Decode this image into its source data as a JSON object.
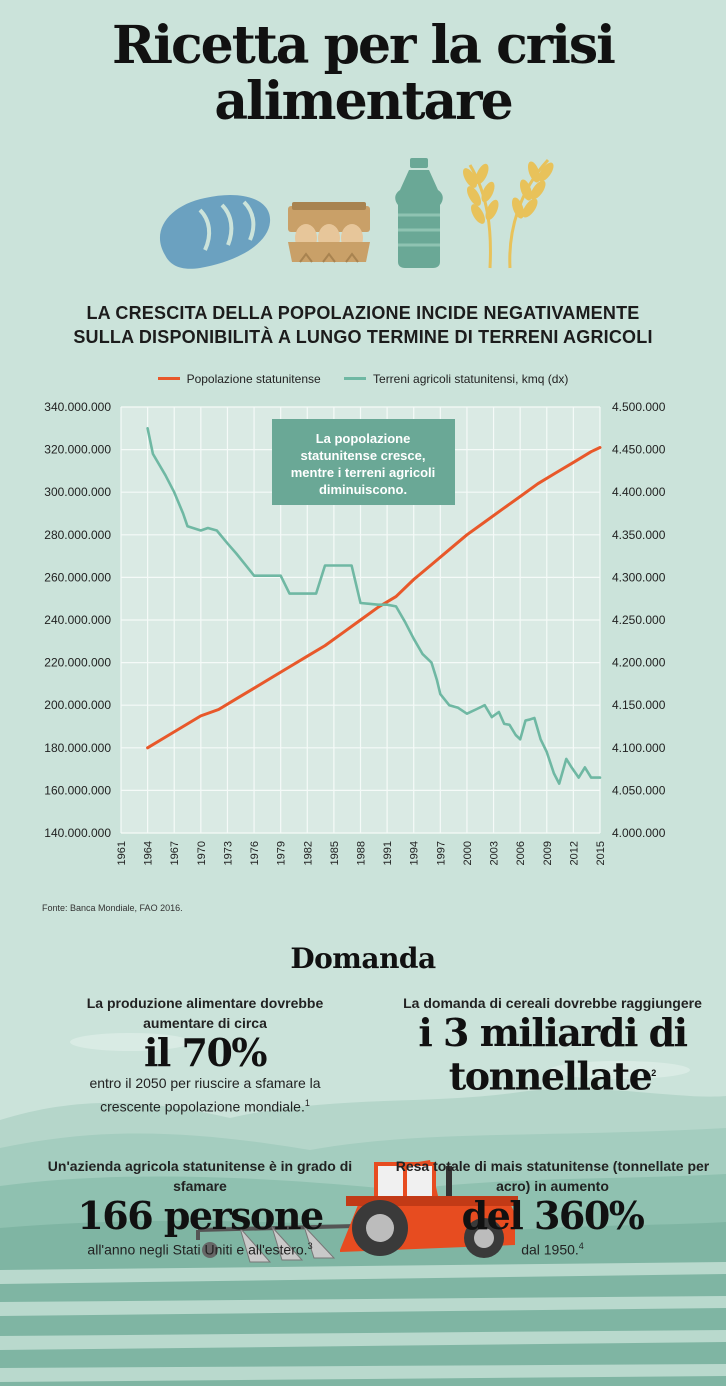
{
  "title": {
    "line1": "Ricetta per la crisi",
    "line2": "alimentare"
  },
  "icons": [
    "bread-icon",
    "egg-carton-icon",
    "oil-bottle-icon",
    "wheat-icon"
  ],
  "subtitle": {
    "line1": "LA CRESCITA DELLA POPOLAZIONE INCIDE NEGATIVAMENTE",
    "line2": "SULLA DISPONIBILITÀ A LUNGO TERMINE DI TERRENI AGRICOLI"
  },
  "colors": {
    "population": "#e8582a",
    "land": "#6fb8a3",
    "annotation_bg": "#6aa896"
  },
  "chart_data": {
    "type": "line",
    "legend": [
      "Popolazione statunitense",
      "Terreni agricoli statunitensi, kmq (dx)"
    ],
    "x_ticks": [
      "1961",
      "1964",
      "1967",
      "1970",
      "1973",
      "1976",
      "1979",
      "1982",
      "1985",
      "1988",
      "1991",
      "1994",
      "1997",
      "2000",
      "2003",
      "2006",
      "2009",
      "2012",
      "2015"
    ],
    "xlim": [
      1961,
      2015
    ],
    "y_left": {
      "ticks": [
        "340.000.000",
        "320.000.000",
        "300.000.000",
        "280.000.000",
        "260.000.000",
        "240.000.000",
        "220.000.000",
        "200.000.000",
        "180.000.000",
        "160.000.000",
        "140.000.000"
      ],
      "ylim": [
        140000000,
        340000000
      ]
    },
    "y_right": {
      "ticks": [
        "4.500.000",
        "4.450.000",
        "4.400.000",
        "4.350.000",
        "4.300.000",
        "4.250.000",
        "4.200.000",
        "4.150.000",
        "4.100.000",
        "4.050.000",
        "4.000.000"
      ],
      "ylim": [
        4000000,
        4500000
      ]
    },
    "series": [
      {
        "name": "Popolazione statunitense",
        "axis": "left",
        "x": [
          1964,
          1966,
          1968,
          1970,
          1972,
          1974,
          1976,
          1978,
          1980,
          1982,
          1984,
          1986,
          1988,
          1990,
          1992,
          1994,
          1996,
          1998,
          2000,
          2002,
          2004,
          2006,
          2008,
          2010,
          2012,
          2014,
          2015
        ],
        "values": [
          180000000,
          185000000,
          190000000,
          195000000,
          198000000,
          203000000,
          208000000,
          213000000,
          218000000,
          223000000,
          228000000,
          234000000,
          240000000,
          246000000,
          251000000,
          259000000,
          266000000,
          273000000,
          280000000,
          286000000,
          292000000,
          298000000,
          304000000,
          309000000,
          314000000,
          319000000,
          321000000
        ]
      },
      {
        "name": "Terreni agricoli statunitensi, kmq (dx)",
        "axis": "right",
        "x": [
          1964,
          1964.6,
          1966,
          1967,
          1968,
          1968.5,
          1970,
          1970.8,
          1971.8,
          1973,
          1974,
          1975,
          1976,
          1977,
          1978,
          1979,
          1980,
          1981,
          1983,
          1984,
          1985,
          1986,
          1987,
          1988,
          1989,
          1990,
          1991,
          1992,
          1993,
          1994,
          1995,
          1996,
          1996.6,
          1997,
          1998,
          1999,
          2000,
          2001,
          2002,
          2002.8,
          2003.6,
          2004.2,
          2004.8,
          2005.5,
          2006,
          2006.6,
          2007,
          2007.6,
          2008.3,
          2009,
          2009.8,
          2010.4,
          2011.2,
          2011.8,
          2012.6,
          2013.3,
          2014,
          2014.6,
          2015
        ],
        "values": [
          4475000,
          4445000,
          4420000,
          4400000,
          4375000,
          4360000,
          4355000,
          4358000,
          4355000,
          4340000,
          4328000,
          4315000,
          4302000,
          4302000,
          4302000,
          4302000,
          4281000,
          4281000,
          4281000,
          4314000,
          4314000,
          4314000,
          4314000,
          4270000,
          4269000,
          4268000,
          4268000,
          4266000,
          4248000,
          4228000,
          4210000,
          4200000,
          4180000,
          4163000,
          4150000,
          4147000,
          4140000,
          4145000,
          4150000,
          4136000,
          4142000,
          4128000,
          4127000,
          4115000,
          4110000,
          4132000,
          4133000,
          4135000,
          4110000,
          4095000,
          4070000,
          4058000,
          4087000,
          4077000,
          4065000,
          4077000,
          4065000,
          4065000,
          4065000
        ]
      }
    ],
    "annotation": "La popolazione statunitense cresce, mentre i terreni agricoli diminuiscono."
  },
  "source": "Fonte: Banca Mondiale, FAO 2016.",
  "section_title": "Domanda",
  "stats": [
    {
      "pre": "La produzione alimentare dovrebbe aumentare di circa",
      "big": "il 70%",
      "post": "entro il 2050 per riuscire a sfamare la crescente popolazione mondiale.",
      "note": "1"
    },
    {
      "pre": "La domanda di cereali dovrebbe raggiungere",
      "big": "i 3 miliardi di tonnellate",
      "post": "",
      "note": "2"
    },
    {
      "pre": "Un'azienda agricola statunitense è in grado di sfamare",
      "big": "166 persone",
      "post": "all'anno negli Stati Uniti e all'estero.",
      "note": "3"
    },
    {
      "pre": "Resa totale di mais statunitense (tonnellate per acro) in aumento",
      "big": "del 360%",
      "post": "dal 1950.",
      "note": "4"
    }
  ]
}
